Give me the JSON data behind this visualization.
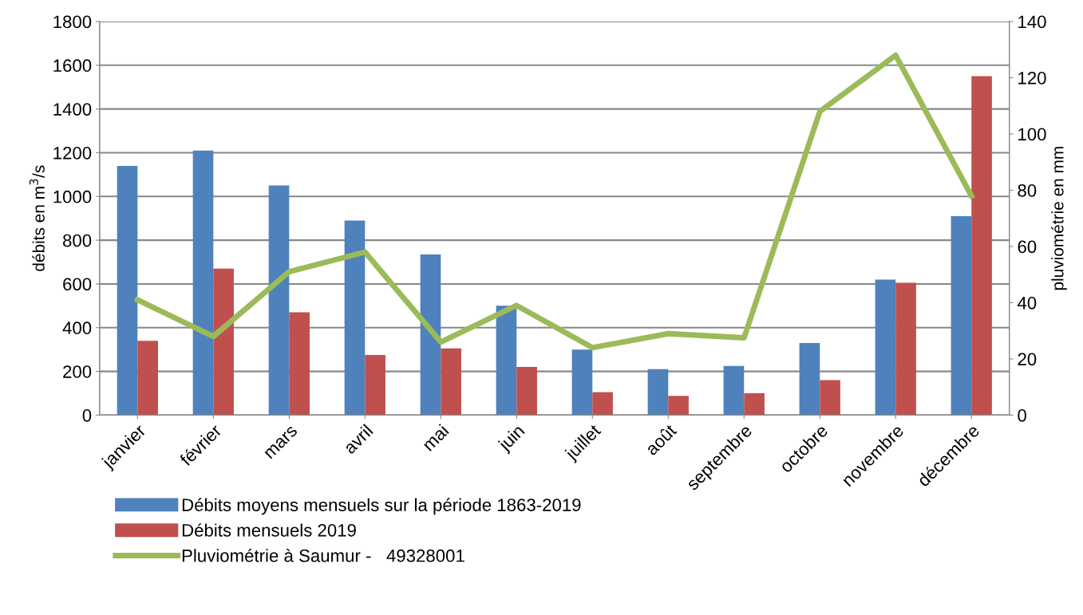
{
  "chart_data": {
    "type": "bar",
    "ylabel": "débits en m$^{3}$/s",
    "y2label": "pluviométrie en mm",
    "categories": [
      "janvier",
      "février",
      "mars",
      "avril",
      "mai",
      "juin",
      "juillet",
      "août",
      "septembre",
      "octobre",
      "novembre",
      "décembre"
    ],
    "series": [
      {
        "name": "Débits moyens mensuels sur la période 1863-2019",
        "color": "#4f81bd",
        "values": [
          1140,
          1210,
          1050,
          890,
          735,
          500,
          300,
          210,
          225,
          330,
          620,
          910
        ]
      },
      {
        "name": "Débits mensuels 2019",
        "color": "#c0504d",
        "values": [
          340,
          670,
          470,
          275,
          305,
          220,
          105,
          88,
          100,
          160,
          605,
          1550
        ]
      },
      {
        "name": "Pluviométrie à Saumur -   49328001",
        "type": "line",
        "axis": "y2",
        "color": "#9bbb59",
        "values": [
          41,
          28,
          51,
          58,
          26,
          39,
          24,
          29,
          27.5,
          108,
          128,
          78
        ]
      }
    ],
    "ylim": [
      0,
      1800
    ],
    "yticks": [
      0,
      200,
      400,
      600,
      800,
      1000,
      1200,
      1400,
      1600,
      1800
    ],
    "y2lim": [
      0,
      140
    ],
    "y2ticks": [
      0,
      20,
      40,
      60,
      80,
      100,
      120,
      140
    ],
    "grid": "y",
    "legend": "bottom",
    "marker": "none",
    "line_style": "solid"
  }
}
